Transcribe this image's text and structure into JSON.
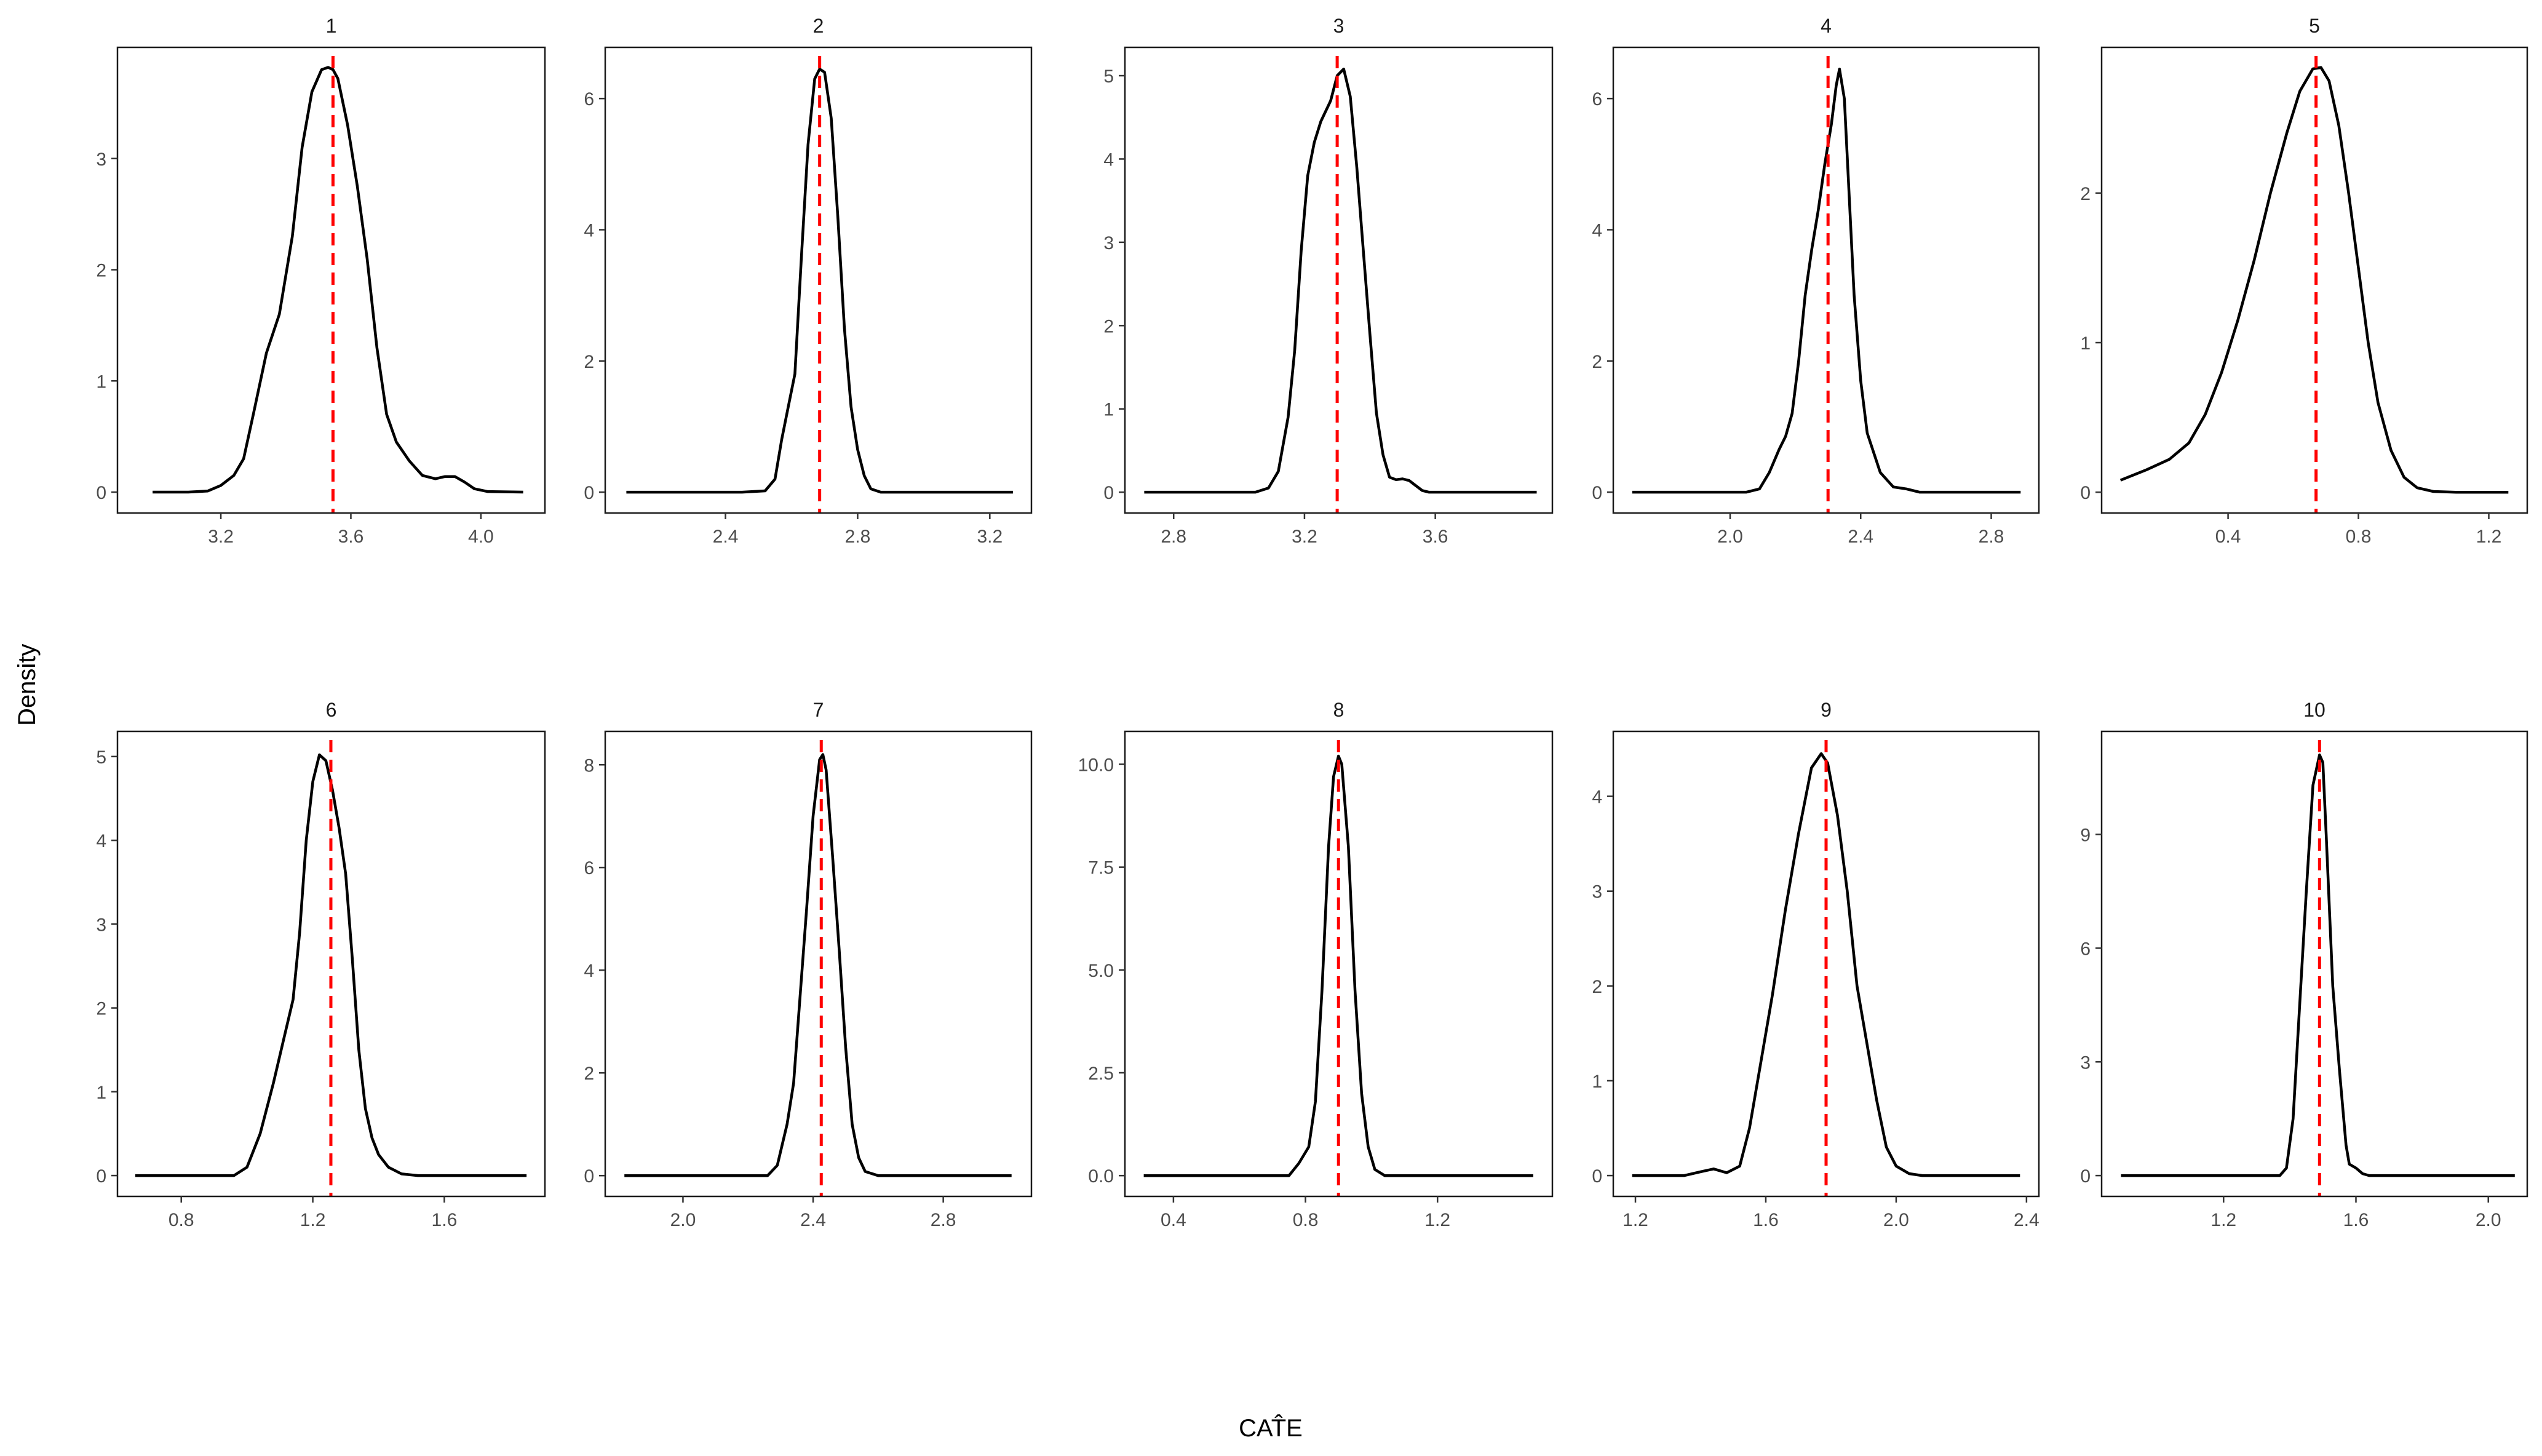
{
  "chart_data": {
    "type": "line",
    "title": "",
    "xlabel": "CATE (hat)",
    "xlabel_display": "CAT̂E",
    "ylabel": "Density",
    "layout": {
      "rows": 2,
      "cols": 5,
      "grid": false,
      "legend": "none"
    },
    "reference_line": {
      "style": "dashed",
      "color": "#ff0000"
    },
    "curve_color": "#000000",
    "panels": [
      {
        "label": "1",
        "box": [
          191,
          77,
          886,
          834
        ],
        "xlim": [
          2.882,
          4.197
        ],
        "ylim": [
          -0.188,
          4.0
        ],
        "xticks": [
          3.2,
          3.6,
          4.0
        ],
        "xtick_labels": [
          "3.2",
          "3.6",
          "4.0"
        ],
        "yticks": [
          0,
          1,
          2,
          3
        ],
        "ytick_labels": [
          "0",
          "1",
          "2",
          "3"
        ],
        "vline": 3.545,
        "x": [
          2.99,
          3.1,
          3.16,
          3.2,
          3.24,
          3.27,
          3.3,
          3.34,
          3.38,
          3.42,
          3.45,
          3.48,
          3.51,
          3.53,
          3.545,
          3.56,
          3.59,
          3.62,
          3.65,
          3.68,
          3.71,
          3.74,
          3.78,
          3.82,
          3.86,
          3.89,
          3.92,
          3.95,
          3.98,
          4.02,
          4.13
        ],
        "y": [
          0,
          0,
          0.01,
          0.06,
          0.15,
          0.3,
          0.7,
          1.25,
          1.6,
          2.3,
          3.1,
          3.6,
          3.8,
          3.82,
          3.8,
          3.72,
          3.3,
          2.75,
          2.1,
          1.3,
          0.7,
          0.45,
          0.28,
          0.15,
          0.12,
          0.14,
          0.14,
          0.09,
          0.03,
          0.005,
          0
        ]
      },
      {
        "label": "2",
        "box": [
          984,
          77,
          1677,
          834
        ],
        "xlim": [
          2.036,
          3.326
        ],
        "ylim": [
          -0.318,
          6.78
        ],
        "xticks": [
          2.4,
          2.8,
          3.2
        ],
        "xtick_labels": [
          "2.4",
          "2.8",
          "3.2"
        ],
        "yticks": [
          0,
          2,
          4,
          6
        ],
        "ytick_labels": [
          "0",
          "2",
          "4",
          "6"
        ],
        "vline": 2.685,
        "x": [
          2.1,
          2.45,
          2.52,
          2.55,
          2.57,
          2.59,
          2.61,
          2.63,
          2.65,
          2.67,
          2.685,
          2.7,
          2.72,
          2.74,
          2.76,
          2.78,
          2.8,
          2.82,
          2.84,
          2.87,
          3.27
        ],
        "y": [
          0,
          0,
          0.02,
          0.2,
          0.8,
          1.3,
          1.8,
          3.6,
          5.3,
          6.3,
          6.45,
          6.4,
          5.7,
          4.2,
          2.5,
          1.3,
          0.65,
          0.25,
          0.05,
          0,
          0
        ]
      },
      {
        "label": "3",
        "box": [
          1829,
          77,
          2524,
          834
        ],
        "xlim": [
          2.651,
          3.958
        ],
        "ylim": [
          -0.25,
          5.34
        ],
        "xticks": [
          2.8,
          3.2,
          3.6
        ],
        "xtick_labels": [
          "2.8",
          "3.2",
          "3.6"
        ],
        "yticks": [
          0,
          1,
          2,
          3,
          4,
          5
        ],
        "ytick_labels": [
          "0",
          "1",
          "2",
          "3",
          "4",
          "5"
        ],
        "vline": 3.3,
        "x": [
          2.71,
          3.05,
          3.09,
          3.12,
          3.15,
          3.17,
          3.19,
          3.21,
          3.23,
          3.25,
          3.28,
          3.3,
          3.32,
          3.34,
          3.36,
          3.38,
          3.4,
          3.42,
          3.44,
          3.46,
          3.48,
          3.5,
          3.52,
          3.54,
          3.56,
          3.58,
          3.91
        ],
        "y": [
          0,
          0,
          0.05,
          0.25,
          0.9,
          1.7,
          2.9,
          3.8,
          4.2,
          4.45,
          4.7,
          5.0,
          5.08,
          4.75,
          3.9,
          2.9,
          1.9,
          0.95,
          0.45,
          0.18,
          0.15,
          0.16,
          0.14,
          0.08,
          0.02,
          0,
          0
        ]
      },
      {
        "label": "4",
        "box": [
          2623,
          77,
          3315,
          834
        ],
        "xlim": [
          1.642,
          2.946
        ],
        "ylim": [
          -0.318,
          6.78
        ],
        "xticks": [
          2.0,
          2.4,
          2.8
        ],
        "xtick_labels": [
          "2.0",
          "2.4",
          "2.8"
        ],
        "yticks": [
          0,
          2,
          4,
          6
        ],
        "ytick_labels": [
          "0",
          "2",
          "4",
          "6"
        ],
        "vline": 2.3,
        "x": [
          1.7,
          2.05,
          2.09,
          2.12,
          2.15,
          2.17,
          2.19,
          2.21,
          2.23,
          2.25,
          2.27,
          2.29,
          2.31,
          2.325,
          2.335,
          2.35,
          2.37,
          2.38,
          2.4,
          2.42,
          2.44,
          2.46,
          2.5,
          2.54,
          2.58,
          2.89
        ],
        "y": [
          0,
          0,
          0.05,
          0.3,
          0.65,
          0.85,
          1.2,
          2.0,
          3.0,
          3.7,
          4.3,
          5.0,
          5.6,
          6.2,
          6.45,
          6.0,
          4.0,
          3.0,
          1.7,
          0.9,
          0.6,
          0.3,
          0.08,
          0.05,
          0,
          0
        ]
      },
      {
        "label": "5",
        "box": [
          3417,
          77,
          4109,
          834
        ],
        "xlim": [
          0.012,
          1.318
        ],
        "ylim": [
          -0.139,
          2.974
        ],
        "xticks": [
          0.4,
          0.8,
          1.2
        ],
        "xtick_labels": [
          "0.4",
          "0.8",
          "1.2"
        ],
        "yticks": [
          0,
          1,
          2
        ],
        "ytick_labels": [
          "0",
          "1",
          "2"
        ],
        "vline": 0.67,
        "x": [
          0.07,
          0.15,
          0.22,
          0.28,
          0.33,
          0.38,
          0.43,
          0.48,
          0.53,
          0.58,
          0.62,
          0.66,
          0.685,
          0.71,
          0.74,
          0.77,
          0.8,
          0.83,
          0.86,
          0.9,
          0.94,
          0.98,
          1.03,
          1.1,
          1.26
        ],
        "y": [
          0.08,
          0.15,
          0.22,
          0.33,
          0.52,
          0.8,
          1.15,
          1.55,
          2.0,
          2.4,
          2.68,
          2.83,
          2.84,
          2.75,
          2.45,
          2.0,
          1.5,
          1.0,
          0.6,
          0.28,
          0.1,
          0.03,
          0.005,
          0,
          0
        ]
      },
      {
        "label": "6",
        "box": [
          191,
          1189,
          886,
          1945
        ],
        "xlim": [
          0.606,
          1.906
        ],
        "ylim": [
          -0.249,
          5.3
        ],
        "xticks": [
          0.8,
          1.2,
          1.6
        ],
        "xtick_labels": [
          "0.8",
          "1.2",
          "1.6"
        ],
        "yticks": [
          0,
          1,
          2,
          3,
          4,
          5
        ],
        "ytick_labels": [
          "0",
          "1",
          "2",
          "3",
          "4",
          "5"
        ],
        "vline": 1.255,
        "x": [
          0.66,
          0.96,
          1.0,
          1.04,
          1.08,
          1.11,
          1.14,
          1.16,
          1.18,
          1.2,
          1.22,
          1.24,
          1.26,
          1.28,
          1.3,
          1.32,
          1.34,
          1.36,
          1.38,
          1.4,
          1.43,
          1.47,
          1.52,
          1.85
        ],
        "y": [
          0,
          0,
          0.1,
          0.5,
          1.1,
          1.6,
          2.1,
          2.9,
          4.0,
          4.7,
          5.02,
          4.95,
          4.6,
          4.15,
          3.6,
          2.6,
          1.5,
          0.8,
          0.45,
          0.25,
          0.1,
          0.02,
          0,
          0
        ]
      },
      {
        "label": "7",
        "box": [
          984,
          1189,
          1677,
          1945
        ],
        "xlim": [
          1.761,
          3.071
        ],
        "ylim": [
          -0.405,
          8.65
        ],
        "xticks": [
          2.0,
          2.4,
          2.8
        ],
        "xtick_labels": [
          "2.0",
          "2.4",
          "2.8"
        ],
        "yticks": [
          0,
          2,
          4,
          6,
          8
        ],
        "ytick_labels": [
          "0",
          "2",
          "4",
          "6",
          "8"
        ],
        "vline": 2.425,
        "x": [
          1.82,
          2.26,
          2.29,
          2.32,
          2.34,
          2.36,
          2.38,
          2.4,
          2.42,
          2.43,
          2.44,
          2.46,
          2.48,
          2.5,
          2.52,
          2.54,
          2.56,
          2.6,
          3.01
        ],
        "y": [
          0,
          0,
          0.2,
          1.0,
          1.8,
          3.5,
          5.2,
          7.0,
          8.1,
          8.2,
          7.9,
          6.2,
          4.4,
          2.5,
          1.0,
          0.35,
          0.08,
          0,
          0
        ]
      },
      {
        "label": "8",
        "box": [
          1829,
          1189,
          2524,
          1945
        ],
        "xlim": [
          0.253,
          1.548
        ],
        "ylim": [
          -0.506,
          10.8
        ],
        "xticks": [
          0.4,
          0.8,
          1.2
        ],
        "xtick_labels": [
          "0.4",
          "0.8",
          "1.2"
        ],
        "yticks": [
          0,
          2.5,
          5,
          7.5,
          10
        ],
        "ytick_labels": [
          "0.0",
          "2.5",
          "5.0",
          "7.5",
          "10.0"
        ],
        "vline": 0.9,
        "x": [
          0.31,
          0.75,
          0.78,
          0.81,
          0.83,
          0.85,
          0.87,
          0.885,
          0.9,
          0.91,
          0.93,
          0.95,
          0.97,
          0.99,
          1.01,
          1.04,
          1.49
        ],
        "y": [
          0,
          0,
          0.3,
          0.7,
          1.8,
          4.5,
          8.0,
          9.7,
          10.2,
          10.0,
          8.0,
          4.5,
          2.0,
          0.7,
          0.15,
          0,
          0
        ]
      },
      {
        "label": "9",
        "box": [
          2623,
          1189,
          3315,
          1945
        ],
        "xlim": [
          1.132,
          2.438
        ],
        "ylim": [
          -0.22,
          4.685
        ],
        "xticks": [
          1.2,
          1.6,
          2.0,
          2.4
        ],
        "xtick_labels": [
          "1.2",
          "1.6",
          "2.0",
          "2.4"
        ],
        "yticks": [
          0,
          1,
          2,
          3,
          4
        ],
        "ytick_labels": [
          "0",
          "1",
          "2",
          "3",
          "4"
        ],
        "vline": 1.785,
        "x": [
          1.19,
          1.35,
          1.4,
          1.44,
          1.48,
          1.52,
          1.55,
          1.58,
          1.62,
          1.66,
          1.7,
          1.74,
          1.77,
          1.79,
          1.82,
          1.85,
          1.88,
          1.91,
          1.94,
          1.97,
          2.0,
          2.04,
          2.08,
          2.38
        ],
        "y": [
          0,
          0,
          0.04,
          0.07,
          0.03,
          0.1,
          0.5,
          1.1,
          1.9,
          2.8,
          3.6,
          4.3,
          4.45,
          4.35,
          3.8,
          3.0,
          2.0,
          1.4,
          0.8,
          0.3,
          0.1,
          0.02,
          0,
          0
        ]
      },
      {
        "label": "10",
        "box": [
          3417,
          1189,
          4109,
          1945
        ],
        "xlim": [
          0.8315,
          2.1176
        ],
        "ylim": [
          -0.55,
          11.72
        ],
        "xticks": [
          1.2,
          1.6,
          2.0
        ],
        "xtick_labels": [
          "1.2",
          "1.6",
          "2.0"
        ],
        "yticks": [
          0,
          3,
          6,
          9
        ],
        "ytick_labels": [
          "0",
          "3",
          "6",
          "9"
        ],
        "vline": 1.49,
        "x": [
          0.89,
          1.37,
          1.39,
          1.41,
          1.43,
          1.45,
          1.47,
          1.49,
          1.5,
          1.51,
          1.53,
          1.55,
          1.57,
          1.58,
          1.6,
          1.62,
          1.64,
          2.08
        ],
        "y": [
          0,
          0,
          0.2,
          1.5,
          4.5,
          7.5,
          10.3,
          11.1,
          10.9,
          9.0,
          5.0,
          2.8,
          0.8,
          0.3,
          0.2,
          0.05,
          0,
          0
        ]
      }
    ]
  },
  "axes": {
    "ylabel": "Density",
    "xlabel": "CAT̂E"
  }
}
